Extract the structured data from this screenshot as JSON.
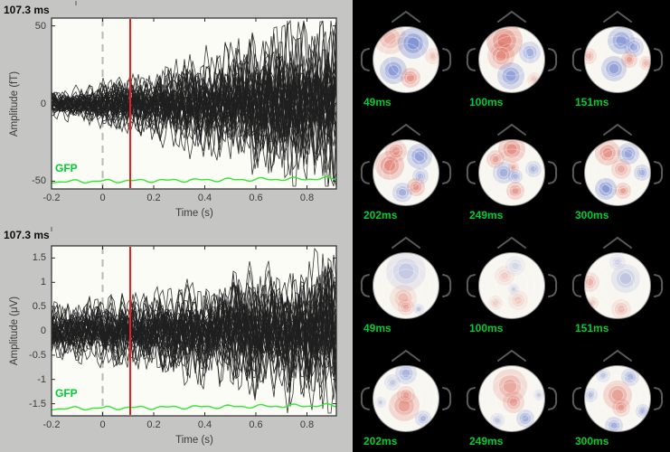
{
  "colors": {
    "figure_bg": "#c5c5c3",
    "panel_bg": "#000000",
    "plot_bg": "#fcfcf6",
    "trace_black": "#1f1f1f",
    "gfp_green_line": "#33e633",
    "green_label": "#00cc33",
    "cursor_red": "#e62020",
    "axis_stroke": "#2b2b2b",
    "tick_text": "#3c3c3c",
    "head_outline": "#5a5a5a",
    "topo_red": "#d84a3c",
    "topo_blue": "#4a64c8"
  },
  "plots": [
    {
      "cursor_label": "107.3 ms",
      "ylabel": "Amplitude (fT)",
      "xlabel": "Time (s)",
      "gfp_label": "GFP",
      "yticks": [
        "50",
        "0",
        "-50"
      ],
      "xticks": [
        "-0.2",
        "0",
        "0.2",
        "0.4",
        "0.6",
        "0.8"
      ]
    },
    {
      "cursor_label": "107.3 ms",
      "ylabel": "Amplitude (μV)",
      "xlabel": "Time (s)",
      "gfp_label": "GFP",
      "yticks": [
        "1.5",
        "1",
        "0.5",
        "0",
        "-0.5",
        "-1",
        "-1.5"
      ],
      "xticks": [
        "-0.2",
        "0",
        "0.2",
        "0.4",
        "0.6",
        "0.8"
      ]
    }
  ],
  "topomaps": {
    "maps": [
      {
        "label": "49ms",
        "blobs": [
          [
            41,
            42,
            18,
            "r",
            0.4
          ],
          [
            67,
            48,
            17,
            "b",
            0.85
          ],
          [
            45,
            78,
            15,
            "b",
            0.75
          ],
          [
            64,
            86,
            11,
            "r",
            0.65
          ],
          [
            89,
            62,
            9,
            "r",
            0.3
          ]
        ]
      },
      {
        "label": "100ms",
        "blobs": [
          [
            51,
            45,
            20,
            "r",
            0.8
          ],
          [
            47,
            62,
            15,
            "r",
            0.55
          ],
          [
            79,
            58,
            12,
            "b",
            0.55
          ],
          [
            58,
            84,
            15,
            "b",
            0.7
          ],
          [
            84,
            88,
            8,
            "r",
            0.3
          ]
        ]
      },
      {
        "label": "151ms",
        "blobs": [
          [
            63,
            45,
            15,
            "b",
            0.75
          ],
          [
            77,
            52,
            11,
            "b",
            0.55
          ],
          [
            72,
            66,
            9,
            "r",
            0.55
          ],
          [
            55,
            76,
            14,
            "b",
            0.7
          ],
          [
            27,
            62,
            9,
            "r",
            0.4
          ],
          [
            91,
            70,
            8,
            "r",
            0.4
          ]
        ]
      },
      {
        "label": "202ms",
        "blobs": [
          [
            41,
            58,
            16,
            "r",
            0.75
          ],
          [
            48,
            42,
            12,
            "r",
            0.6
          ],
          [
            74,
            48,
            14,
            "b",
            0.7
          ],
          [
            75,
            70,
            9,
            "b",
            0.45
          ],
          [
            55,
            88,
            11,
            "b",
            0.55
          ],
          [
            70,
            82,
            10,
            "r",
            0.65
          ]
        ]
      },
      {
        "label": "249ms",
        "blobs": [
          [
            59,
            40,
            15,
            "r",
            0.7
          ],
          [
            41,
            51,
            10,
            "r",
            0.55
          ],
          [
            50,
            66,
            12,
            "b",
            0.55
          ],
          [
            63,
            70,
            8,
            "b",
            0.45
          ],
          [
            61,
            60,
            6,
            "r",
            0.45
          ],
          [
            63,
            86,
            10,
            "r",
            0.6
          ],
          [
            83,
            62,
            9,
            "b",
            0.45
          ]
        ]
      },
      {
        "label": "300ms",
        "blobs": [
          [
            48,
            44,
            14,
            "r",
            0.65
          ],
          [
            71,
            45,
            12,
            "b",
            0.65
          ],
          [
            63,
            62,
            11,
            "r",
            0.45
          ],
          [
            46,
            84,
            12,
            "b",
            0.8
          ],
          [
            65,
            86,
            9,
            "r",
            0.55
          ],
          [
            86,
            66,
            9,
            "b",
            0.55
          ]
        ]
      },
      {
        "label": "49ms",
        "blobs": [
          [
            59,
            50,
            22,
            "b",
            0.3
          ],
          [
            56,
            80,
            15,
            "r",
            0.35
          ],
          [
            59,
            90,
            9,
            "r",
            0.4
          ],
          [
            73,
            92,
            6,
            "b",
            0.35
          ]
        ]
      },
      {
        "label": "100ms",
        "blobs": [
          [
            51,
            55,
            11,
            "r",
            0.22
          ],
          [
            66,
            82,
            11,
            "r",
            0.25
          ],
          [
            63,
            44,
            11,
            "b",
            0.2
          ],
          [
            61,
            70,
            6,
            "b",
            0.25
          ],
          [
            41,
            85,
            8,
            "r",
            0.25
          ]
        ]
      },
      {
        "label": "151ms",
        "blobs": [
          [
            28,
            62,
            11,
            "r",
            0.4
          ],
          [
            68,
            58,
            16,
            "b",
            0.35
          ],
          [
            63,
            92,
            11,
            "r",
            0.35
          ],
          [
            59,
            40,
            9,
            "b",
            0.25
          ],
          [
            31,
            85,
            7,
            "r",
            0.3
          ]
        ]
      },
      {
        "label": "202ms",
        "blobs": [
          [
            59,
            38,
            12,
            "b",
            0.5
          ],
          [
            44,
            48,
            9,
            "b",
            0.3
          ],
          [
            57,
            74,
            17,
            "r",
            0.55
          ],
          [
            59,
            62,
            10,
            "r",
            0.4
          ],
          [
            78,
            88,
            9,
            "b",
            0.45
          ],
          [
            31,
            70,
            6,
            "b",
            0.3
          ]
        ]
      },
      {
        "label": "249ms",
        "blobs": [
          [
            57,
            52,
            19,
            "r",
            0.5
          ],
          [
            61,
            70,
            12,
            "r",
            0.5
          ],
          [
            74,
            88,
            10,
            "b",
            0.55
          ],
          [
            43,
            90,
            8,
            "b",
            0.35
          ],
          [
            89,
            62,
            6,
            "b",
            0.3
          ]
        ]
      },
      {
        "label": "300ms",
        "blobs": [
          [
            73,
            42,
            10,
            "b",
            0.5
          ],
          [
            43,
            40,
            8,
            "b",
            0.35
          ],
          [
            59,
            62,
            16,
            "r",
            0.55
          ],
          [
            63,
            76,
            10,
            "r",
            0.5
          ],
          [
            55,
            96,
            10,
            "b",
            0.55
          ],
          [
            29,
            62,
            8,
            "b",
            0.4
          ],
          [
            87,
            80,
            8,
            "b",
            0.45
          ]
        ]
      }
    ]
  },
  "chart_data": [
    {
      "type": "line",
      "subtype": "butterfly-erp-multichannel",
      "title": "",
      "xlabel": "Time (s)",
      "ylabel": "Amplitude (fT)",
      "xlim": [
        -0.2,
        0.92
      ],
      "ylim": [
        -55,
        55
      ],
      "xticks": [
        -0.2,
        0,
        0.2,
        0.4,
        0.6,
        0.8
      ],
      "yticks": [
        50,
        0,
        -50
      ],
      "cursor_time_ms": 107.3,
      "event_marker_s": 0,
      "n_channel_traces": 44,
      "trace_envelope": {
        "x": [
          -0.2,
          0,
          0.1,
          0.2,
          0.4,
          0.6,
          0.8,
          0.92
        ],
        "half_amplitude_fT": [
          12,
          14,
          17,
          25,
          42,
          60,
          75,
          85
        ]
      },
      "series": [
        {
          "name": "GFP",
          "color": "#33e633",
          "x": [
            -0.2,
            0,
            0.2,
            0.4,
            0.6,
            0.8,
            0.92
          ],
          "y_fT": [
            -50,
            -50,
            -49.5,
            -49,
            -48.5,
            -48,
            -47.5
          ]
        }
      ],
      "grid": false,
      "legend": "none"
    },
    {
      "type": "line",
      "subtype": "butterfly-erp-multichannel",
      "title": "",
      "xlabel": "Time (s)",
      "ylabel": "Amplitude (μV)",
      "xlim": [
        -0.2,
        0.92
      ],
      "ylim": [
        -1.75,
        1.75
      ],
      "xticks": [
        -0.2,
        0,
        0.2,
        0.4,
        0.6,
        0.8
      ],
      "yticks": [
        1.5,
        1,
        0.5,
        0,
        -0.5,
        -1,
        -1.5
      ],
      "cursor_time_ms": 107.3,
      "event_marker_s": 0,
      "n_channel_traces": 44,
      "trace_envelope": {
        "x": [
          -0.2,
          0,
          0.1,
          0.2,
          0.4,
          0.6,
          0.8,
          0.92
        ],
        "half_amplitude_uV": [
          0.45,
          0.5,
          0.55,
          0.7,
          1.0,
          1.2,
          1.3,
          1.35
        ]
      },
      "series": [
        {
          "name": "GFP",
          "color": "#33e633",
          "x": [
            -0.2,
            0,
            0.2,
            0.4,
            0.6,
            0.8,
            0.92
          ],
          "y_uV": [
            -1.62,
            -1.62,
            -1.6,
            -1.58,
            -1.57,
            -1.55,
            -1.55
          ]
        }
      ],
      "grid": false,
      "legend": "none"
    },
    {
      "type": "heatmap",
      "subtype": "topographic-scalp-maps",
      "layout": "4 rows x 3 columns on black background",
      "times_ms": [
        49,
        100,
        151,
        202,
        249,
        300
      ],
      "map_labels": [
        "49ms",
        "100ms",
        "151ms",
        "202ms",
        "249ms",
        "300ms",
        "49ms",
        "100ms",
        "151ms",
        "202ms",
        "249ms",
        "300ms"
      ],
      "colormap": "blue-white-red",
      "label_color": "#00cc33"
    }
  ]
}
